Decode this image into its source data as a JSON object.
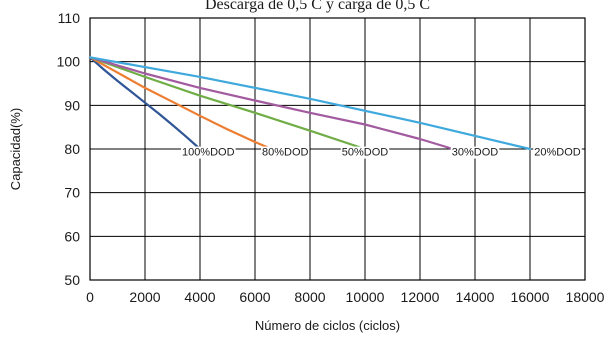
{
  "chart_data": {
    "type": "line",
    "title": "Descarga de 0,5 C y carga de 0,5 C",
    "xlabel": "Número de ciclos (ciclos)",
    "ylabel": "Capacidad(%)",
    "xlim": [
      0,
      18000
    ],
    "ylim": [
      50,
      110
    ],
    "xticks": [
      0,
      2000,
      4000,
      6000,
      8000,
      10000,
      12000,
      14000,
      16000,
      18000
    ],
    "yticks": [
      50,
      60,
      70,
      80,
      90,
      100,
      110
    ],
    "xtick_labels": [
      "0",
      "2000",
      "4000",
      "6000",
      "8000",
      "10000",
      "12000",
      "14000",
      "16000",
      "18000"
    ],
    "ytick_labels": [
      "50",
      "60",
      "70",
      "80",
      "90",
      "100",
      "110"
    ],
    "grid": true,
    "legend": "inline labels",
    "series": [
      {
        "name": "100%DOD",
        "color": "#2f5597",
        "x": [
          0,
          500,
          1000,
          1500,
          2000,
          2500,
          3000,
          3500,
          4000
        ],
        "y": [
          101,
          98.2,
          95.6,
          93.1,
          90.6,
          88.1,
          85.5,
          82.8,
          80
        ]
      },
      {
        "name": "80%DOD",
        "color": "#ed7d31",
        "x": [
          0,
          1000,
          2000,
          3000,
          4000,
          5000,
          6000,
          6600
        ],
        "y": [
          101,
          97.5,
          94,
          90.8,
          87.6,
          84.5,
          81.6,
          80
        ]
      },
      {
        "name": "50%DOD",
        "color": "#70ad47",
        "x": [
          0,
          2000,
          4000,
          6000,
          8000,
          10000
        ],
        "y": [
          101,
          96.5,
          92.2,
          88.3,
          84.2,
          80
        ]
      },
      {
        "name": "30%DOD",
        "color": "#a35ba0",
        "x": [
          0,
          2000,
          4000,
          6000,
          8000,
          10000,
          12000,
          13200
        ],
        "y": [
          101,
          97.3,
          94,
          91.1,
          88.3,
          85.6,
          82.3,
          80
        ]
      },
      {
        "name": "20%DOD",
        "color": "#3fa9dd",
        "x": [
          0,
          4000,
          8000,
          12000,
          16000
        ],
        "y": [
          101,
          96.5,
          91.5,
          86,
          80
        ]
      }
    ],
    "annotations": [
      {
        "text": "100%DOD",
        "x": 4300,
        "y": 78.5
      },
      {
        "text": "80%DOD",
        "x": 7100,
        "y": 78.5
      },
      {
        "text": "50%DOD",
        "x": 10000,
        "y": 78.5
      },
      {
        "text": "30%DOD",
        "x": 14000,
        "y": 78.5
      },
      {
        "text": "20%DOD",
        "x": 17000,
        "y": 78.5
      }
    ]
  }
}
